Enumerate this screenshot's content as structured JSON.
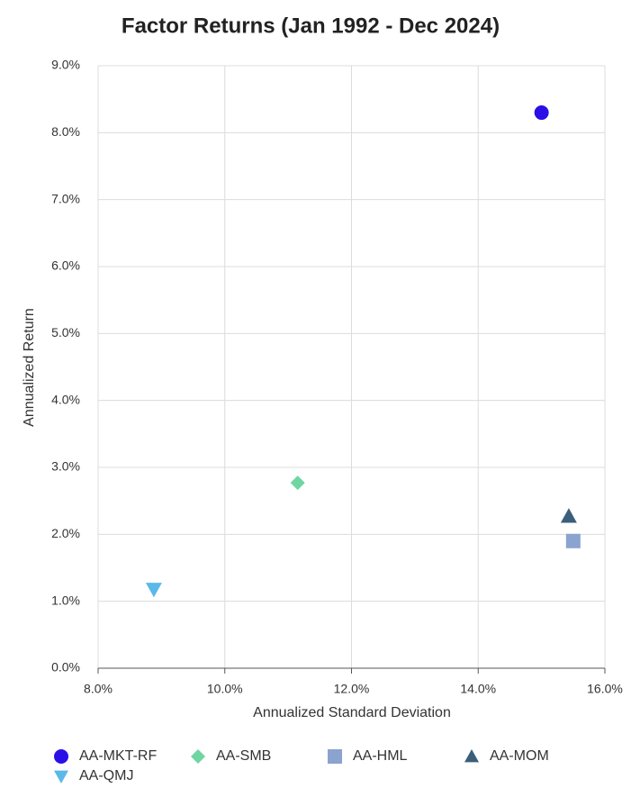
{
  "chart_data": {
    "type": "scatter",
    "title": "Factor Returns (Jan 1992 - Dec 2024)",
    "x_label": "Annualized Standard Deviation",
    "y_label": "Annualized Return",
    "xlim": [
      8,
      16
    ],
    "ylim": [
      0,
      9
    ],
    "grid": true,
    "xticks": [
      {
        "value": 8,
        "label": "8.0%"
      },
      {
        "value": 10,
        "label": "10.0%"
      },
      {
        "value": 12,
        "label": "12.0%"
      },
      {
        "value": 14,
        "label": "14.0%"
      },
      {
        "value": 16,
        "label": "16.0%"
      }
    ],
    "yticks": [
      {
        "value": 0,
        "label": "0.0%"
      },
      {
        "value": 1,
        "label": "1.0%"
      },
      {
        "value": 2,
        "label": "2.0%"
      },
      {
        "value": 3,
        "label": "3.0%"
      },
      {
        "value": 4,
        "label": "4.0%"
      },
      {
        "value": 5,
        "label": "5.0%"
      },
      {
        "value": 6,
        "label": "6.0%"
      },
      {
        "value": 7,
        "label": "7.0%"
      },
      {
        "value": 8,
        "label": "8.0%"
      },
      {
        "value": 9,
        "label": "9.0%"
      }
    ],
    "legend": "bottom",
    "series": [
      {
        "name": "AA-MKT-RF",
        "color": "#2a10e6",
        "marker": "circle",
        "x": [
          15.0
        ],
        "values": [
          8.3
        ]
      },
      {
        "name": "AA-SMB",
        "color": "#6fd6a2",
        "marker": "diamond",
        "x": [
          11.15
        ],
        "values": [
          2.77
        ]
      },
      {
        "name": "AA-HML",
        "color": "#8aa3cf",
        "marker": "square",
        "x": [
          15.5
        ],
        "values": [
          1.9
        ]
      },
      {
        "name": "AA-MOM",
        "color": "#3b5f7a",
        "marker": "triangle-up",
        "x": [
          15.43
        ],
        "values": [
          2.27
        ]
      },
      {
        "name": "AA-QMJ",
        "color": "#5bb8ea",
        "marker": "triangle-down",
        "x": [
          8.88
        ],
        "values": [
          1.18
        ]
      }
    ]
  }
}
